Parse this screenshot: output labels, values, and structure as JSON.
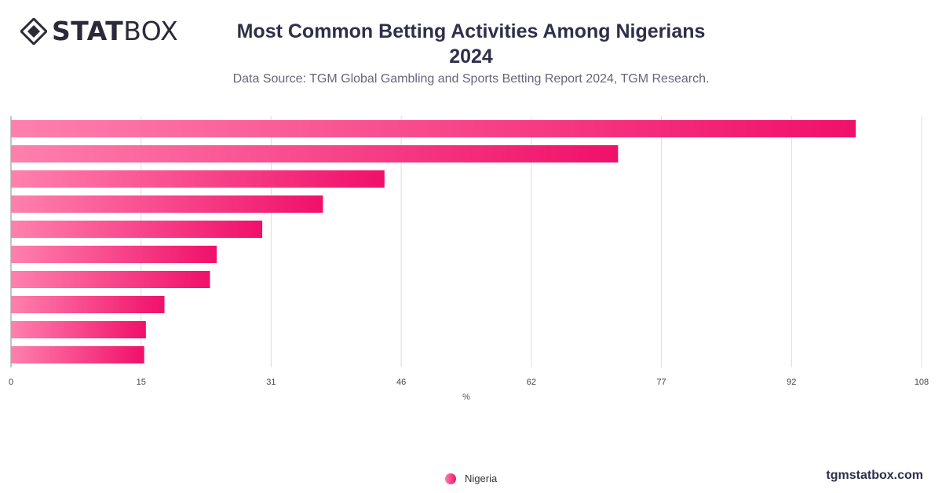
{
  "brand": {
    "logo_bold": "STAT",
    "logo_light": "BOX",
    "site": "tgmstatbox.com"
  },
  "header": {
    "title_line1": "Most Common Betting Activities Among Nigerians",
    "title_line2": "2024",
    "subtitle": "Data Source: TGM Global Gambling and Sports Betting Report 2024, TGM Research."
  },
  "colors": {
    "bar_start": "#ff80ad",
    "bar_end": "#f0106a",
    "grid": "#dddddd",
    "axis": "#888888",
    "text": "#2f2f4a"
  },
  "chart_data": {
    "type": "bar",
    "orientation": "horizontal",
    "title": "Most Common Betting Activities Among Nigerians 2024",
    "subtitle": "Data Source: TGM Global Gambling and Sports Betting Report 2024, TGM Research.",
    "xlabel": "%",
    "ylabel": "",
    "xlim": [
      0,
      108
    ],
    "x_ticks": [
      "0",
      "15",
      "31",
      "46",
      "62",
      "77",
      "92",
      "108"
    ],
    "categories": [
      "",
      "",
      "",
      "",
      "",
      "",
      "",
      "",
      "",
      ""
    ],
    "series": [
      {
        "name": "Nigeria",
        "values": [
          100.2,
          72.0,
          44.3,
          37.0,
          29.8,
          24.4,
          23.6,
          18.2,
          16.0,
          15.8
        ]
      }
    ],
    "grid": true,
    "legend_position": "bottom-center"
  }
}
